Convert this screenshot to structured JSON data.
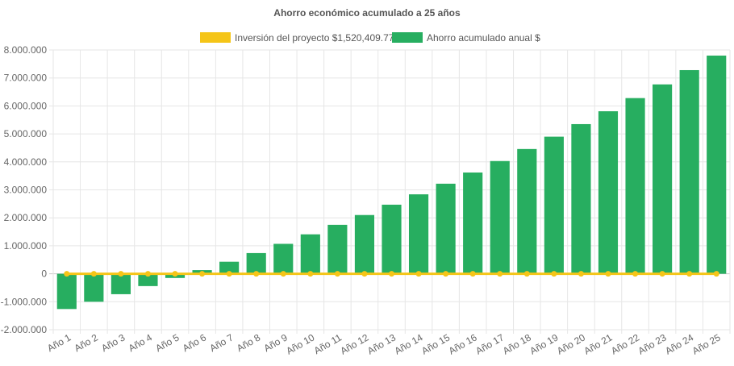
{
  "chart_data": {
    "type": "bar",
    "title": "Ahorro económico acumulado a 25 años",
    "legend_position": "top",
    "grid": true,
    "ylim": [
      -2000000,
      8000000
    ],
    "y_step": 1000000,
    "y_tick_labels": [
      "-2.000.000",
      "-1.000.000",
      "0",
      "1.000.000",
      "2.000.000",
      "3.000.000",
      "4.000.000",
      "5.000.000",
      "6.000.000",
      "7.000.000",
      "8.000.000"
    ],
    "categories": [
      "Año 1",
      "Año 2",
      "Año 3",
      "Año 4",
      "Año 5",
      "Año 6",
      "Año 7",
      "Año 8",
      "Año 9",
      "Año 10",
      "Año 11",
      "Año 12",
      "Año 13",
      "Año 14",
      "Año 15",
      "Año 16",
      "Año 17",
      "Año 18",
      "Año 19",
      "Año 20",
      "Año 21",
      "Año 22",
      "Año 23",
      "Año 24",
      "Año 25"
    ],
    "series": [
      {
        "name": "Inversión del proyecto $1,520,409.77",
        "type": "line",
        "color": "#f5c518",
        "values": [
          0,
          0,
          0,
          0,
          0,
          0,
          0,
          0,
          0,
          0,
          0,
          0,
          0,
          0,
          0,
          0,
          0,
          0,
          0,
          0,
          0,
          0,
          0,
          0,
          0
        ]
      },
      {
        "name": "Ahorro acumulado anual $",
        "type": "bar",
        "color": "#27ae60",
        "values": [
          -1260000,
          -1000000,
          -730000,
          -440000,
          -150000,
          130000,
          430000,
          740000,
          1070000,
          1410000,
          1750000,
          2100000,
          2470000,
          2840000,
          3220000,
          3620000,
          4030000,
          4460000,
          4900000,
          5350000,
          5810000,
          6280000,
          6770000,
          7280000,
          7800000
        ]
      }
    ]
  }
}
